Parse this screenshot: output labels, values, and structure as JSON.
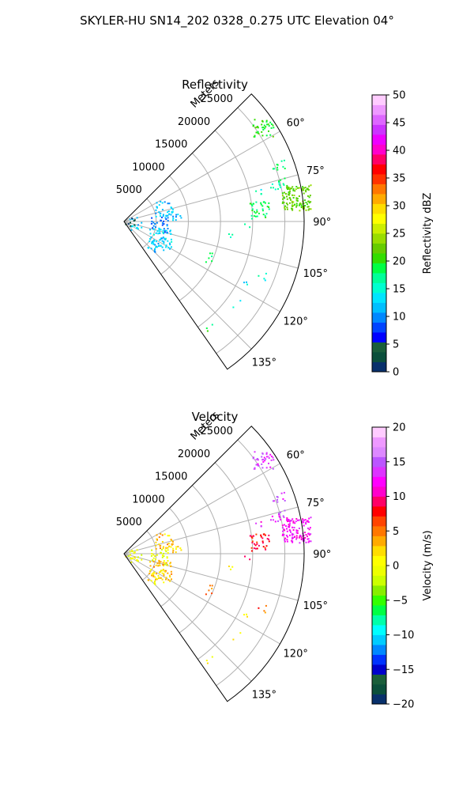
{
  "figure_title": "SKYLER-HU  SN14_202  0328_0.275 UTC Elevation 04°",
  "chart_data": [
    {
      "type": "polar-sector",
      "title": "Reflectivity",
      "theta_start_deg": 45,
      "theta_end_deg": 145,
      "theta_ticks": [
        "60°",
        "75°",
        "90°",
        "105°",
        "120°",
        "135°"
      ],
      "theta_tick_values": [
        60,
        75,
        90,
        105,
        120,
        135
      ],
      "r_max": 28000,
      "r_ticks": [
        "5000",
        "10000",
        "15000",
        "20000",
        "25000"
      ],
      "r_tick_values": [
        5000,
        10000,
        15000,
        20000,
        25000
      ],
      "r_label": "Meters",
      "grid": true,
      "colorbar": {
        "label": "Reflectivity dBZ",
        "min": 0,
        "max": 50,
        "ticks": [
          "0",
          "5",
          "10",
          "15",
          "20",
          "25",
          "30",
          "35",
          "40",
          "45",
          "50"
        ],
        "colors": [
          "#08306b",
          "#0b4f3b",
          "#1a5e3a",
          "#0000ff",
          "#0044ff",
          "#0088ff",
          "#00bfff",
          "#00e5ff",
          "#00ffd0",
          "#00ff99",
          "#00ff44",
          "#33dd00",
          "#66cc00",
          "#99dd00",
          "#ccee00",
          "#ffff00",
          "#ffdd00",
          "#ffaa00",
          "#ff7700",
          "#ff3300",
          "#ff0000",
          "#ff0066",
          "#ff00cc",
          "#ee00ff",
          "#cc33ff",
          "#dd66ff",
          "#ee99ff",
          "#ffccff"
        ]
      },
      "echo_clusters": [
        {
          "theta": 56,
          "r": 26000,
          "value": 20,
          "n": 40
        },
        {
          "theta": 70,
          "r": 25500,
          "value": 18,
          "n": 10
        },
        {
          "theta": 76,
          "r": 24500,
          "value": 17,
          "n": 14
        },
        {
          "theta": 82,
          "r": 27000,
          "value": 22,
          "n": 120
        },
        {
          "theta": 85,
          "r": 21000,
          "value": 18,
          "n": 35
        },
        {
          "theta": 78,
          "r": 21500,
          "value": 15,
          "n": 4
        },
        {
          "theta": 92,
          "r": 19000,
          "value": 18,
          "n": 2
        },
        {
          "theta": 98,
          "r": 17000,
          "value": 16,
          "n": 3
        },
        {
          "theta": 112,
          "r": 14500,
          "value": 17,
          "n": 6
        },
        {
          "theta": 118,
          "r": 21000,
          "value": 14,
          "n": 3
        },
        {
          "theta": 112,
          "r": 23000,
          "value": 16,
          "n": 4
        },
        {
          "theta": 126,
          "r": 21500,
          "value": 14,
          "n": 2
        },
        {
          "theta": 141,
          "r": 21000,
          "value": 18,
          "n": 3
        },
        {
          "theta": 72,
          "r": 6500,
          "value": 12,
          "n": 30
        },
        {
          "theta": 82,
          "r": 7800,
          "value": 12,
          "n": 14
        },
        {
          "theta": 95,
          "r": 5500,
          "value": 9,
          "n": 28
        },
        {
          "theta": 115,
          "r": 6000,
          "value": 13,
          "n": 55
        },
        {
          "theta": 125,
          "r": 6200,
          "value": 12,
          "n": 18
        },
        {
          "theta": 100,
          "r": 1600,
          "value": 12,
          "n": 14
        },
        {
          "theta": 90,
          "r": 700,
          "value": 3,
          "n": 8
        }
      ]
    },
    {
      "type": "polar-sector",
      "title": "Velocity",
      "theta_start_deg": 45,
      "theta_end_deg": 145,
      "theta_ticks": [
        "60°",
        "75°",
        "90°",
        "105°",
        "120°",
        "135°"
      ],
      "theta_tick_values": [
        60,
        75,
        90,
        105,
        120,
        135
      ],
      "r_max": 28000,
      "r_ticks": [
        "5000",
        "10000",
        "15000",
        "20000",
        "25000"
      ],
      "r_tick_values": [
        5000,
        10000,
        15000,
        20000,
        25000
      ],
      "r_label": "Meters",
      "grid": true,
      "colorbar": {
        "label": "Velocity (m/s)",
        "min": -20,
        "max": 20,
        "ticks": [
          "−20",
          "−15",
          "−10",
          "−5",
          "0",
          "5",
          "10",
          "15",
          "20"
        ],
        "colors": [
          "#08306b",
          "#0b4f3b",
          "#1a5e3a",
          "#0000cc",
          "#0033ff",
          "#0088ff",
          "#00ccff",
          "#00ffff",
          "#00ffaa",
          "#00ff44",
          "#33ff00",
          "#88ee00",
          "#ccff00",
          "#eeff00",
          "#ffff00",
          "#ffdd00",
          "#ffaa00",
          "#ff7700",
          "#ff4400",
          "#ff0000",
          "#ff0066",
          "#ff00cc",
          "#ff00ff",
          "#dd33ff",
          "#bb55ff",
          "#dd88ff",
          "#ee99ff",
          "#ffccff"
        ]
      },
      "echo_clusters": [
        {
          "theta": 56,
          "r": 26000,
          "value": 14,
          "n": 40
        },
        {
          "theta": 70,
          "r": 25500,
          "value": 14,
          "n": 10
        },
        {
          "theta": 76,
          "r": 24500,
          "value": 14,
          "n": 14
        },
        {
          "theta": 82,
          "r": 27000,
          "value": 12,
          "n": 120
        },
        {
          "theta": 85,
          "r": 21000,
          "value": 8,
          "n": 35
        },
        {
          "theta": 78,
          "r": 21500,
          "value": 12,
          "n": 4
        },
        {
          "theta": 92,
          "r": 19000,
          "value": 10,
          "n": 2
        },
        {
          "theta": 98,
          "r": 17000,
          "value": 1,
          "n": 3
        },
        {
          "theta": 112,
          "r": 14500,
          "value": 4,
          "n": 6
        },
        {
          "theta": 118,
          "r": 21000,
          "value": 2,
          "n": 3
        },
        {
          "theta": 112,
          "r": 23000,
          "value": 6,
          "n": 4
        },
        {
          "theta": 126,
          "r": 21500,
          "value": 1,
          "n": 2
        },
        {
          "theta": 141,
          "r": 21000,
          "value": 0,
          "n": 3
        },
        {
          "theta": 72,
          "r": 6500,
          "value": 3,
          "n": 30
        },
        {
          "theta": 82,
          "r": 7800,
          "value": 2,
          "n": 14
        },
        {
          "theta": 95,
          "r": 5500,
          "value": -1,
          "n": 28
        },
        {
          "theta": 115,
          "r": 6000,
          "value": 3,
          "n": 55
        },
        {
          "theta": 125,
          "r": 6200,
          "value": 1,
          "n": 18
        },
        {
          "theta": 100,
          "r": 1600,
          "value": -1,
          "n": 14
        },
        {
          "theta": 90,
          "r": 700,
          "value": 0,
          "n": 8
        }
      ]
    }
  ]
}
